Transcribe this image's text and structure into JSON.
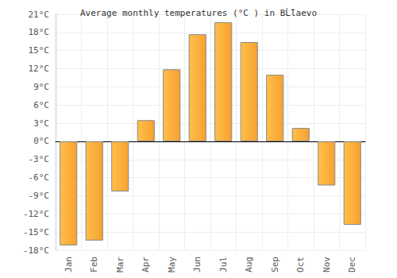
{
  "chart_data": {
    "type": "bar",
    "title": "Average monthly temperatures (°C ) in BĹ̃laevo",
    "categories": [
      "Jan",
      "Feb",
      "Mar",
      "Apr",
      "May",
      "Jun",
      "Jul",
      "Aug",
      "Sep",
      "Oct",
      "Nov",
      "Dec"
    ],
    "values": [
      -17.2,
      -16.4,
      -8.3,
      3.5,
      11.9,
      17.7,
      19.7,
      16.4,
      11.0,
      2.2,
      -7.3,
      -13.8
    ],
    "color": "#f7a030",
    "ylim": [
      -18,
      21
    ],
    "yticks": [
      {
        "value": -18,
        "label": "-18°C"
      },
      {
        "value": -15,
        "label": "-15°C"
      },
      {
        "value": -12,
        "label": "-12°C"
      },
      {
        "value": -9,
        "label": "-9°C"
      },
      {
        "value": -6,
        "label": "-6°C"
      },
      {
        "value": -3,
        "label": "-3°C"
      },
      {
        "value": 0,
        "label": "0°C"
      },
      {
        "value": 3,
        "label": "3°C"
      },
      {
        "value": 6,
        "label": "6°C"
      },
      {
        "value": 9,
        "label": "9°C"
      },
      {
        "value": 12,
        "label": "12°C"
      },
      {
        "value": 15,
        "label": "15°C"
      },
      {
        "value": 18,
        "label": "18°C"
      },
      {
        "value": 21,
        "label": "21°C"
      }
    ],
    "grid": true
  }
}
